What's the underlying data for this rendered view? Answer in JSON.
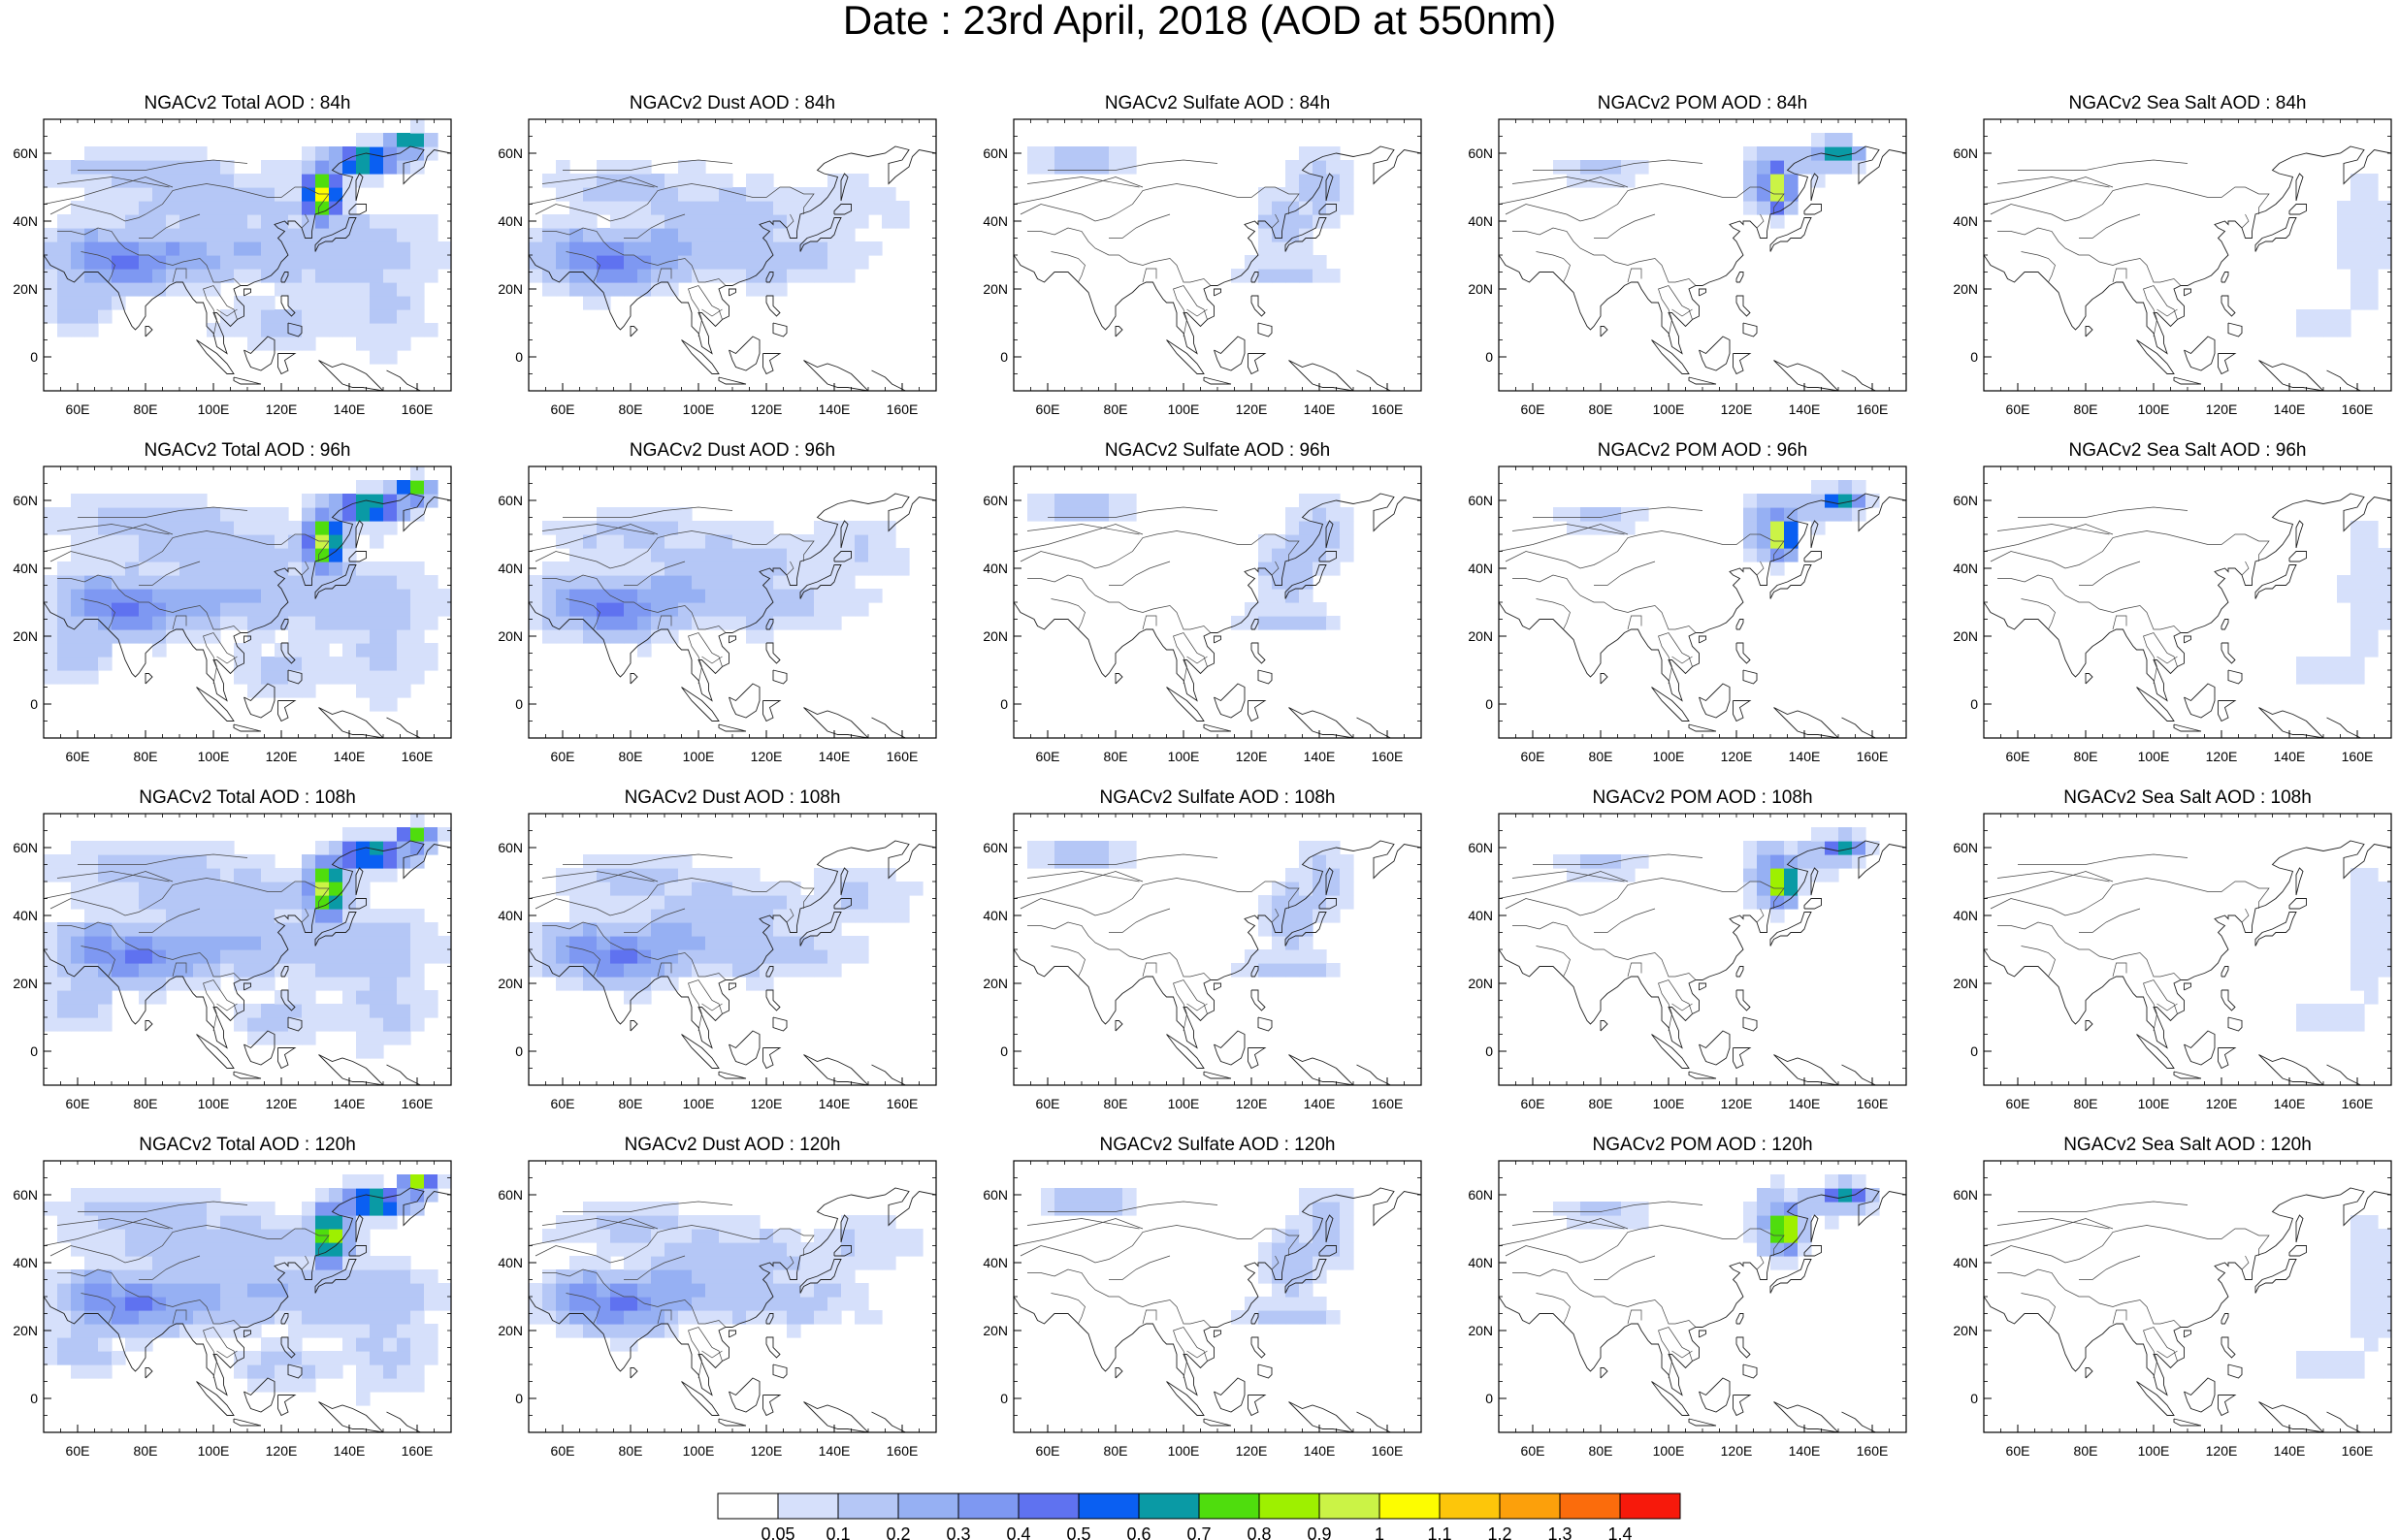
{
  "title": "Date : 23rd April, 2018 (AOD at 550nm)",
  "rows": [
    "84h",
    "96h",
    "108h",
    "120h"
  ],
  "columns": [
    "Total",
    "Dust",
    "Sulfate",
    "POM",
    "Sea Salt"
  ],
  "panel_titles": [
    [
      "NGACv2 Total AOD : 84h",
      "NGACv2 Dust AOD : 84h",
      "NGACv2 Sulfate AOD : 84h",
      "NGACv2 POM AOD : 84h",
      "NGACv2 Sea Salt AOD : 84h"
    ],
    [
      "NGACv2 Total AOD : 96h",
      "NGACv2 Dust AOD : 96h",
      "NGACv2 Sulfate AOD : 96h",
      "NGACv2 POM AOD : 96h",
      "NGACv2 Sea Salt AOD : 96h"
    ],
    [
      "NGACv2 Total AOD : 108h",
      "NGACv2 Dust AOD : 108h",
      "NGACv2 Sulfate AOD : 108h",
      "NGACv2 POM AOD : 108h",
      "NGACv2 Sea Salt AOD : 108h"
    ],
    [
      "NGACv2 Total AOD : 120h",
      "NGACv2 Dust AOD : 120h",
      "NGACv2 Sulfate AOD : 120h",
      "NGACv2 POM AOD : 120h",
      "NGACv2 Sea Salt  AOD : 120h"
    ]
  ],
  "map": {
    "lon_range": [
      50,
      170
    ],
    "lat_range": [
      -10,
      70
    ],
    "lon_ticks": [
      "60E",
      "80E",
      "100E",
      "120E",
      "140E",
      "160E"
    ],
    "lon_tick_values": [
      60,
      80,
      100,
      120,
      140,
      160
    ],
    "lat_ticks": [
      "0",
      "20N",
      "40N",
      "60N"
    ],
    "lat_tick_values": [
      0,
      20,
      40,
      60
    ]
  },
  "colorbar": {
    "labels": [
      "0.05",
      "0.1",
      "0.2",
      "0.3",
      "0.4",
      "0.5",
      "0.6",
      "0.7",
      "0.8",
      "0.9",
      "1",
      "1.1",
      "1.2",
      "1.3",
      "1.4"
    ],
    "colors": [
      "#ffffff",
      "#d6e0fb",
      "#b5c7f6",
      "#96b0f3",
      "#7e98f2",
      "#5f72f0",
      "#0a5ff2",
      "#0a9aa5",
      "#4fdd0d",
      "#9ef000",
      "#cbf346",
      "#fdfd00",
      "#fdc60a",
      "#fca00b",
      "#fb6c0c",
      "#f7190b"
    ]
  }
}
